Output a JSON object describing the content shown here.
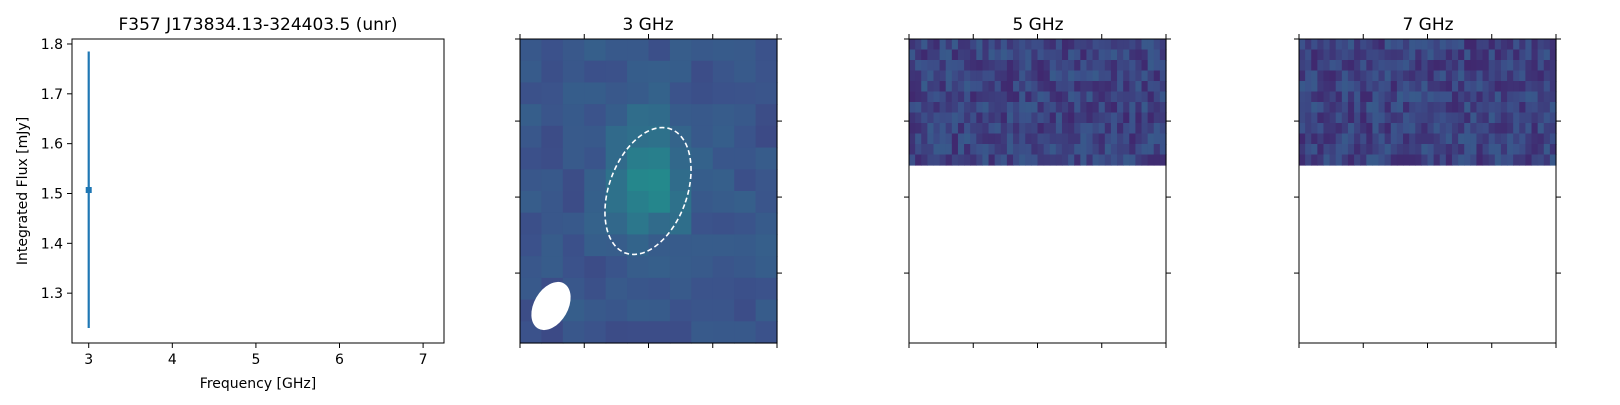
{
  "chart_data": [
    {
      "type": "scatter",
      "title": "F357 J173834.13-324403.5 (unr)",
      "xlabel": "Frequency [GHz]",
      "ylabel": "Integrated Flux [mJy]",
      "xlim": [
        2.8,
        7.25
      ],
      "ylim": [
        1.2,
        1.81
      ],
      "xticks": [
        "3",
        "4",
        "5",
        "6",
        "7"
      ],
      "yticks": [
        "1.3",
        "1.4",
        "1.5",
        "1.6",
        "1.7",
        "1.8"
      ],
      "points": [
        {
          "x": 3,
          "y": 1.507,
          "yerr_low": 1.23,
          "yerr_high": 1.785
        }
      ],
      "color": "#1f77b4",
      "grid": false
    },
    {
      "type": "heatmap",
      "title": "3 GHz",
      "colormap": "viridis",
      "cells": "12x14",
      "annotations": [
        "source-ellipse (dashed white)",
        "beam-ellipse (filled white)"
      ]
    },
    {
      "type": "heatmap",
      "title": "5 GHz",
      "colormap": "viridis",
      "note": "noise map, upper portion only"
    },
    {
      "type": "heatmap",
      "title": "7 GHz",
      "colormap": "viridis",
      "note": "noise map, upper portion only"
    }
  ]
}
